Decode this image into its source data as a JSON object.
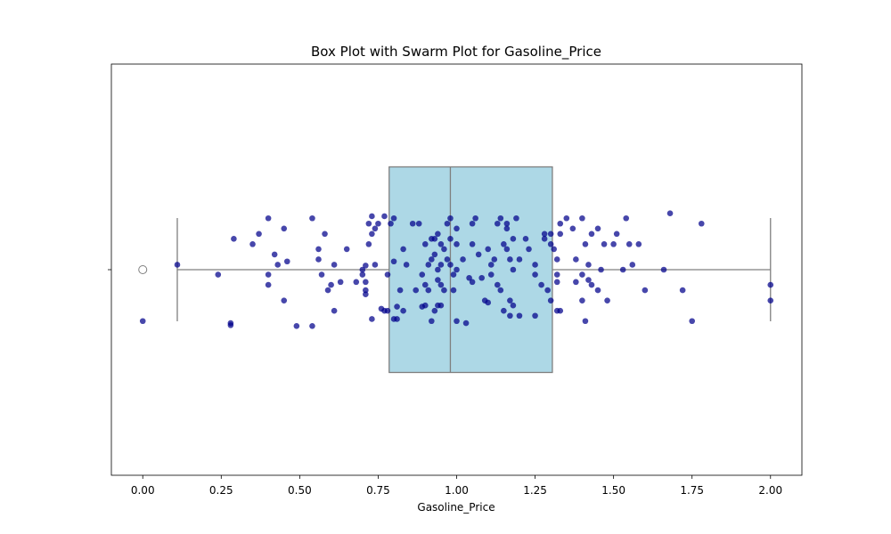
{
  "chart_data": {
    "type": "box+swarm",
    "title": "Box Plot with Swarm Plot for Gasoline_Price",
    "xlabel": "Gasoline_Price",
    "ylabel": "",
    "xlim": [
      -0.1,
      2.1
    ],
    "xticks": [
      0.0,
      0.25,
      0.5,
      0.75,
      1.0,
      1.25,
      1.5,
      1.75,
      2.0
    ],
    "xtick_labels": [
      "0.00",
      "0.25",
      "0.50",
      "0.75",
      "1.00",
      "1.25",
      "1.50",
      "1.75",
      "2.00"
    ],
    "grid": false,
    "box": {
      "whisker_low": 0.11,
      "q1": 0.785,
      "median": 0.98,
      "q3": 1.305,
      "whisker_high": 2.0,
      "fill_color": "#add8e6",
      "line_color": "#7f7f7f"
    },
    "outliers": [
      0.0
    ],
    "swarm_color": "#00008b",
    "points": [
      [
        0.0,
        -0.125
      ],
      [
        0.11,
        0.012
      ],
      [
        0.24,
        -0.012
      ],
      [
        0.28,
        -0.13
      ],
      [
        0.28,
        -0.135
      ],
      [
        0.29,
        0.075
      ],
      [
        0.35,
        0.062
      ],
      [
        0.37,
        0.087
      ],
      [
        0.4,
        0.125
      ],
      [
        0.4,
        -0.012
      ],
      [
        0.4,
        -0.037
      ],
      [
        0.42,
        0.037
      ],
      [
        0.43,
        0.012
      ],
      [
        0.45,
        0.1
      ],
      [
        0.45,
        -0.075
      ],
      [
        0.46,
        0.02
      ],
      [
        0.49,
        -0.137
      ],
      [
        0.54,
        0.125
      ],
      [
        0.54,
        -0.137
      ],
      [
        0.56,
        0.05
      ],
      [
        0.56,
        0.025
      ],
      [
        0.57,
        -0.012
      ],
      [
        0.58,
        0.087
      ],
      [
        0.59,
        -0.05
      ],
      [
        0.6,
        -0.037
      ],
      [
        0.61,
        0.012
      ],
      [
        0.61,
        -0.1
      ],
      [
        0.63,
        -0.03
      ],
      [
        0.65,
        0.05
      ],
      [
        0.68,
        -0.03
      ],
      [
        0.7,
        0.0
      ],
      [
        0.7,
        -0.012
      ],
      [
        0.71,
        0.01
      ],
      [
        0.71,
        -0.03
      ],
      [
        0.71,
        -0.05
      ],
      [
        0.71,
        -0.06
      ],
      [
        0.72,
        0.062
      ],
      [
        0.72,
        0.112
      ],
      [
        0.73,
        0.087
      ],
      [
        0.73,
        0.13
      ],
      [
        0.73,
        -0.12
      ],
      [
        0.74,
        0.012
      ],
      [
        0.74,
        0.1
      ],
      [
        0.75,
        0.112
      ],
      [
        0.76,
        -0.095
      ],
      [
        0.77,
        0.13
      ],
      [
        0.77,
        -0.1
      ],
      [
        0.78,
        -0.1
      ],
      [
        0.78,
        -0.012
      ],
      [
        0.79,
        0.112
      ],
      [
        0.8,
        0.125
      ],
      [
        0.8,
        -0.12
      ],
      [
        0.8,
        0.02
      ],
      [
        0.81,
        -0.09
      ],
      [
        0.81,
        -0.12
      ],
      [
        0.82,
        -0.05
      ],
      [
        0.83,
        0.05
      ],
      [
        0.83,
        -0.1
      ],
      [
        0.84,
        0.012
      ],
      [
        0.86,
        0.112
      ],
      [
        0.87,
        -0.05
      ],
      [
        0.88,
        0.112
      ],
      [
        0.89,
        -0.012
      ],
      [
        0.89,
        -0.09
      ],
      [
        0.9,
        0.062
      ],
      [
        0.9,
        -0.037
      ],
      [
        0.9,
        -0.087
      ],
      [
        0.91,
        0.012
      ],
      [
        0.91,
        -0.05
      ],
      [
        0.92,
        0.075
      ],
      [
        0.92,
        0.025
      ],
      [
        0.92,
        -0.125
      ],
      [
        0.93,
        0.075
      ],
      [
        0.93,
        0.037
      ],
      [
        0.93,
        -0.1
      ],
      [
        0.94,
        0.087
      ],
      [
        0.94,
        0.0
      ],
      [
        0.94,
        -0.025
      ],
      [
        0.94,
        -0.087
      ],
      [
        0.95,
        0.062
      ],
      [
        0.95,
        0.012
      ],
      [
        0.95,
        -0.037
      ],
      [
        0.95,
        -0.087
      ],
      [
        0.96,
        0.05
      ],
      [
        0.96,
        -0.05
      ],
      [
        0.97,
        0.112
      ],
      [
        0.97,
        0.025
      ],
      [
        0.98,
        0.125
      ],
      [
        0.98,
        0.075
      ],
      [
        0.98,
        0.012
      ],
      [
        0.99,
        -0.012
      ],
      [
        0.99,
        -0.05
      ],
      [
        1.0,
        0.1
      ],
      [
        1.0,
        0.062
      ],
      [
        1.0,
        0.0
      ],
      [
        1.0,
        -0.125
      ],
      [
        1.02,
        0.025
      ],
      [
        1.03,
        -0.13
      ],
      [
        1.04,
        -0.02
      ],
      [
        1.05,
        0.062
      ],
      [
        1.05,
        -0.03
      ],
      [
        1.05,
        0.112
      ],
      [
        1.06,
        0.125
      ],
      [
        1.07,
        0.037
      ],
      [
        1.08,
        -0.02
      ],
      [
        1.09,
        -0.075
      ],
      [
        1.1,
        0.05
      ],
      [
        1.1,
        -0.08
      ],
      [
        1.11,
        0.012
      ],
      [
        1.11,
        -0.012
      ],
      [
        1.12,
        0.025
      ],
      [
        1.13,
        0.112
      ],
      [
        1.13,
        -0.037
      ],
      [
        1.14,
        0.125
      ],
      [
        1.14,
        -0.05
      ],
      [
        1.15,
        0.062
      ],
      [
        1.15,
        -0.1
      ],
      [
        1.16,
        0.1
      ],
      [
        1.16,
        0.112
      ],
      [
        1.16,
        0.05
      ],
      [
        1.17,
        0.025
      ],
      [
        1.17,
        -0.075
      ],
      [
        1.17,
        -0.112
      ],
      [
        1.18,
        0.075
      ],
      [
        1.18,
        0.0
      ],
      [
        1.18,
        -0.087
      ],
      [
        1.19,
        0.125
      ],
      [
        1.2,
        0.025
      ],
      [
        1.2,
        -0.112
      ],
      [
        1.22,
        0.075
      ],
      [
        1.23,
        0.05
      ],
      [
        1.25,
        0.012
      ],
      [
        1.25,
        -0.012
      ],
      [
        1.25,
        -0.112
      ],
      [
        1.27,
        -0.037
      ],
      [
        1.28,
        0.087
      ],
      [
        1.28,
        0.075
      ],
      [
        1.29,
        -0.05
      ],
      [
        1.3,
        0.087
      ],
      [
        1.3,
        0.062
      ],
      [
        1.3,
        -0.075
      ],
      [
        1.31,
        0.05
      ],
      [
        1.32,
        0.025
      ],
      [
        1.32,
        -0.012
      ],
      [
        1.32,
        -0.03
      ],
      [
        1.32,
        -0.1
      ],
      [
        1.33,
        0.112
      ],
      [
        1.33,
        0.087
      ],
      [
        1.33,
        -0.1
      ],
      [
        1.35,
        0.125
      ],
      [
        1.37,
        0.1
      ],
      [
        1.38,
        0.025
      ],
      [
        1.38,
        -0.03
      ],
      [
        1.4,
        0.125
      ],
      [
        1.4,
        -0.012
      ],
      [
        1.4,
        -0.075
      ],
      [
        1.41,
        0.062
      ],
      [
        1.41,
        -0.125
      ],
      [
        1.42,
        -0.025
      ],
      [
        1.42,
        0.012
      ],
      [
        1.43,
        0.087
      ],
      [
        1.43,
        -0.037
      ],
      [
        1.45,
        0.1
      ],
      [
        1.45,
        -0.05
      ],
      [
        1.46,
        0.0
      ],
      [
        1.47,
        0.062
      ],
      [
        1.48,
        -0.075
      ],
      [
        1.5,
        0.062
      ],
      [
        1.51,
        0.087
      ],
      [
        1.53,
        0.0
      ],
      [
        1.54,
        0.125
      ],
      [
        1.55,
        0.062
      ],
      [
        1.56,
        0.012
      ],
      [
        1.58,
        0.062
      ],
      [
        1.6,
        -0.05
      ],
      [
        1.66,
        0.0
      ],
      [
        1.68,
        0.137
      ],
      [
        1.72,
        -0.05
      ],
      [
        1.75,
        -0.125
      ],
      [
        1.78,
        0.112
      ],
      [
        2.0,
        -0.037
      ],
      [
        2.0,
        -0.075
      ]
    ]
  }
}
